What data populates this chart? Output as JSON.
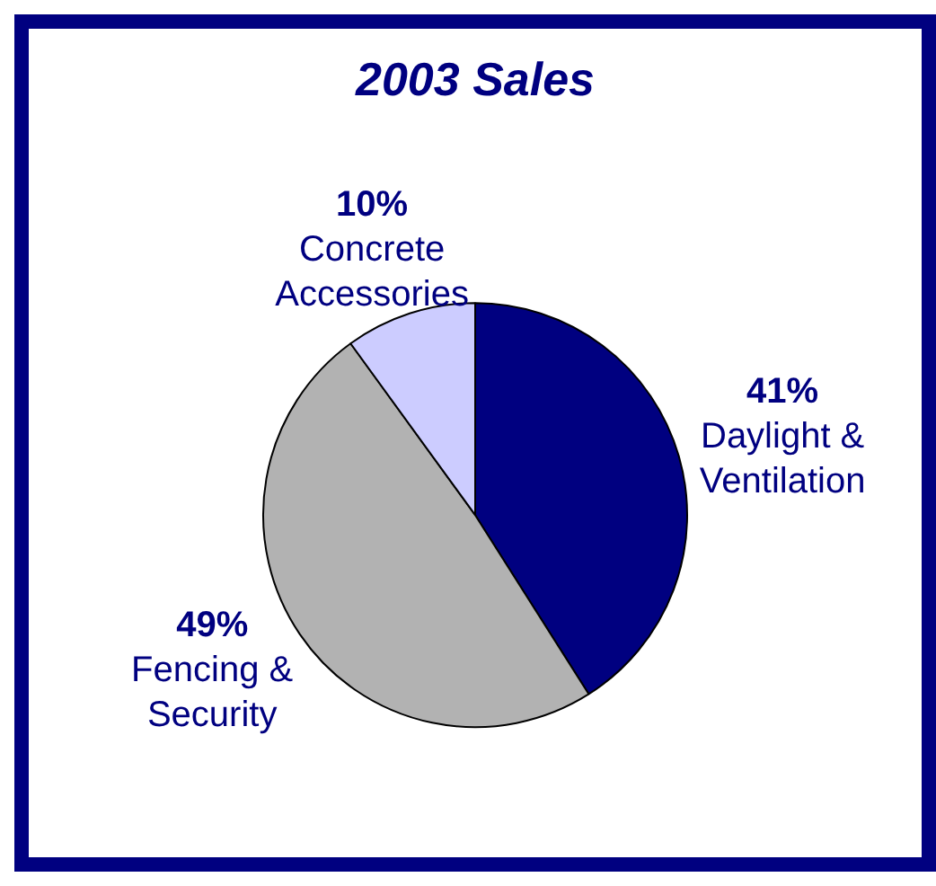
{
  "chart_data": {
    "type": "pie",
    "title": "2003 Sales",
    "categories": [
      "Daylight & Ventilation",
      "Fencing & Security",
      "Concrete Accessories"
    ],
    "values": [
      41,
      49,
      10
    ],
    "value_labels": [
      "41%",
      "49%",
      "10%"
    ],
    "colors": [
      "#000080",
      "#b2b2b2",
      "#ccccff"
    ]
  }
}
